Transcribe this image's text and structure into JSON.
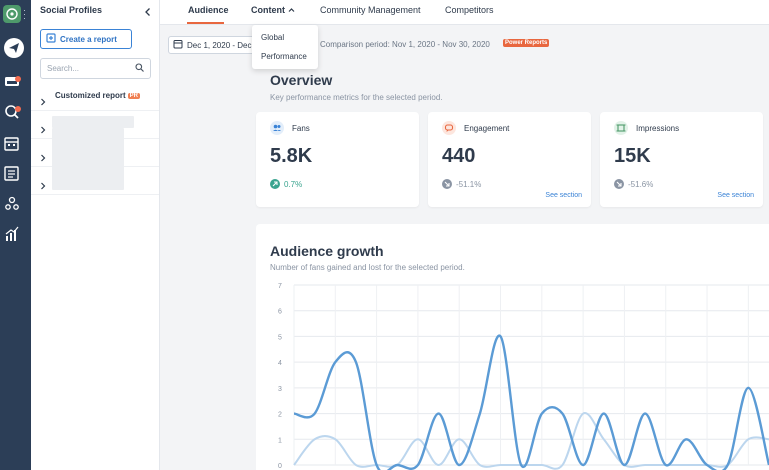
{
  "sidebar": {
    "title": "Social Profiles",
    "create_label": "Create a report",
    "search_placeholder": "Search...",
    "tree": [
      {
        "label": "Customized report",
        "badge": "PR"
      }
    ]
  },
  "nav": {
    "tabs": [
      "Audience",
      "Content",
      "Community Management",
      "Competitors"
    ],
    "active": "Audience",
    "dropdown": [
      "Global",
      "Performance"
    ]
  },
  "period": {
    "date_label": "Dec 1, 2020 - Dec",
    "comparison": "Comparison period: Nov 1, 2020 - Nov 30, 2020",
    "badge": "Power Reports"
  },
  "overview": {
    "title": "Overview",
    "subtitle": "Key performance metrics for the selected period.",
    "cards": [
      {
        "label": "Fans",
        "value": "5.8K",
        "delta": "0.7%",
        "trend": "up",
        "icon": "users-icon",
        "color": "#3a83d6"
      },
      {
        "label": "Engagement",
        "value": "440",
        "delta": "-51.1%",
        "trend": "down",
        "icon": "chat-icon",
        "color": "#e8673f",
        "link": "See section"
      },
      {
        "label": "Impressions",
        "value": "15K",
        "delta": "-51.6%",
        "trend": "down",
        "icon": "frame-icon",
        "color": "#4e9a6b",
        "link": "See section"
      }
    ]
  },
  "growth": {
    "title": "Audience growth",
    "subtitle": "Number of fans gained and lost for the selected period."
  },
  "chart_data": {
    "type": "line",
    "x": [
      0,
      1,
      2,
      3,
      4,
      5,
      6,
      7,
      8,
      9,
      10,
      11,
      12,
      13,
      14,
      15,
      16,
      17,
      18,
      19,
      20,
      21,
      22,
      23
    ],
    "ylim": [
      0,
      7
    ],
    "yticks": [
      "0",
      "1",
      "2",
      "3",
      "4",
      "5",
      "6",
      "7"
    ],
    "grid": true,
    "series": [
      {
        "color": "#5b9bd5",
        "values": [
          2,
          2,
          4,
          4,
          0,
          0,
          0,
          2,
          0,
          2,
          5,
          0,
          2,
          2,
          0,
          2,
          0,
          2,
          0,
          1,
          0,
          0,
          3,
          0
        ]
      },
      {
        "color": "#bcd6ee",
        "values": [
          0,
          1,
          1,
          0,
          0,
          0,
          1,
          0,
          1,
          0,
          0,
          0,
          0,
          0,
          2,
          1,
          0,
          0,
          0,
          0,
          0,
          0,
          1,
          1
        ]
      }
    ]
  }
}
